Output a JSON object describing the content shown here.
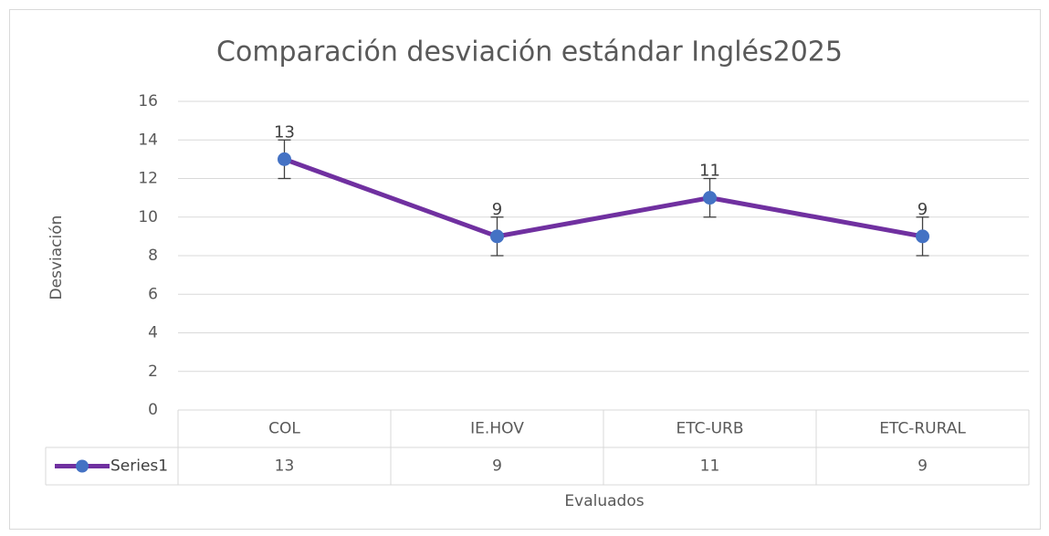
{
  "chart_data": {
    "type": "line",
    "title": "Comparación desviación estándar Inglés2025",
    "x_label": "Evaluados",
    "y_label": "Desviación",
    "categories": [
      "COL",
      "IE.HOV",
      "ETC-URB",
      "ETC-RURAL"
    ],
    "series": [
      {
        "name": "Series1",
        "color": "#7030a0",
        "marker_color": "#4472c4",
        "values": [
          13,
          9,
          11,
          9
        ],
        "errors": [
          1,
          1,
          1,
          1
        ]
      }
    ],
    "ylim": [
      0,
      16
    ],
    "yticks": [
      0,
      2,
      4,
      6,
      8,
      10,
      12,
      14,
      16
    ],
    "grid": true,
    "data_table": true
  }
}
